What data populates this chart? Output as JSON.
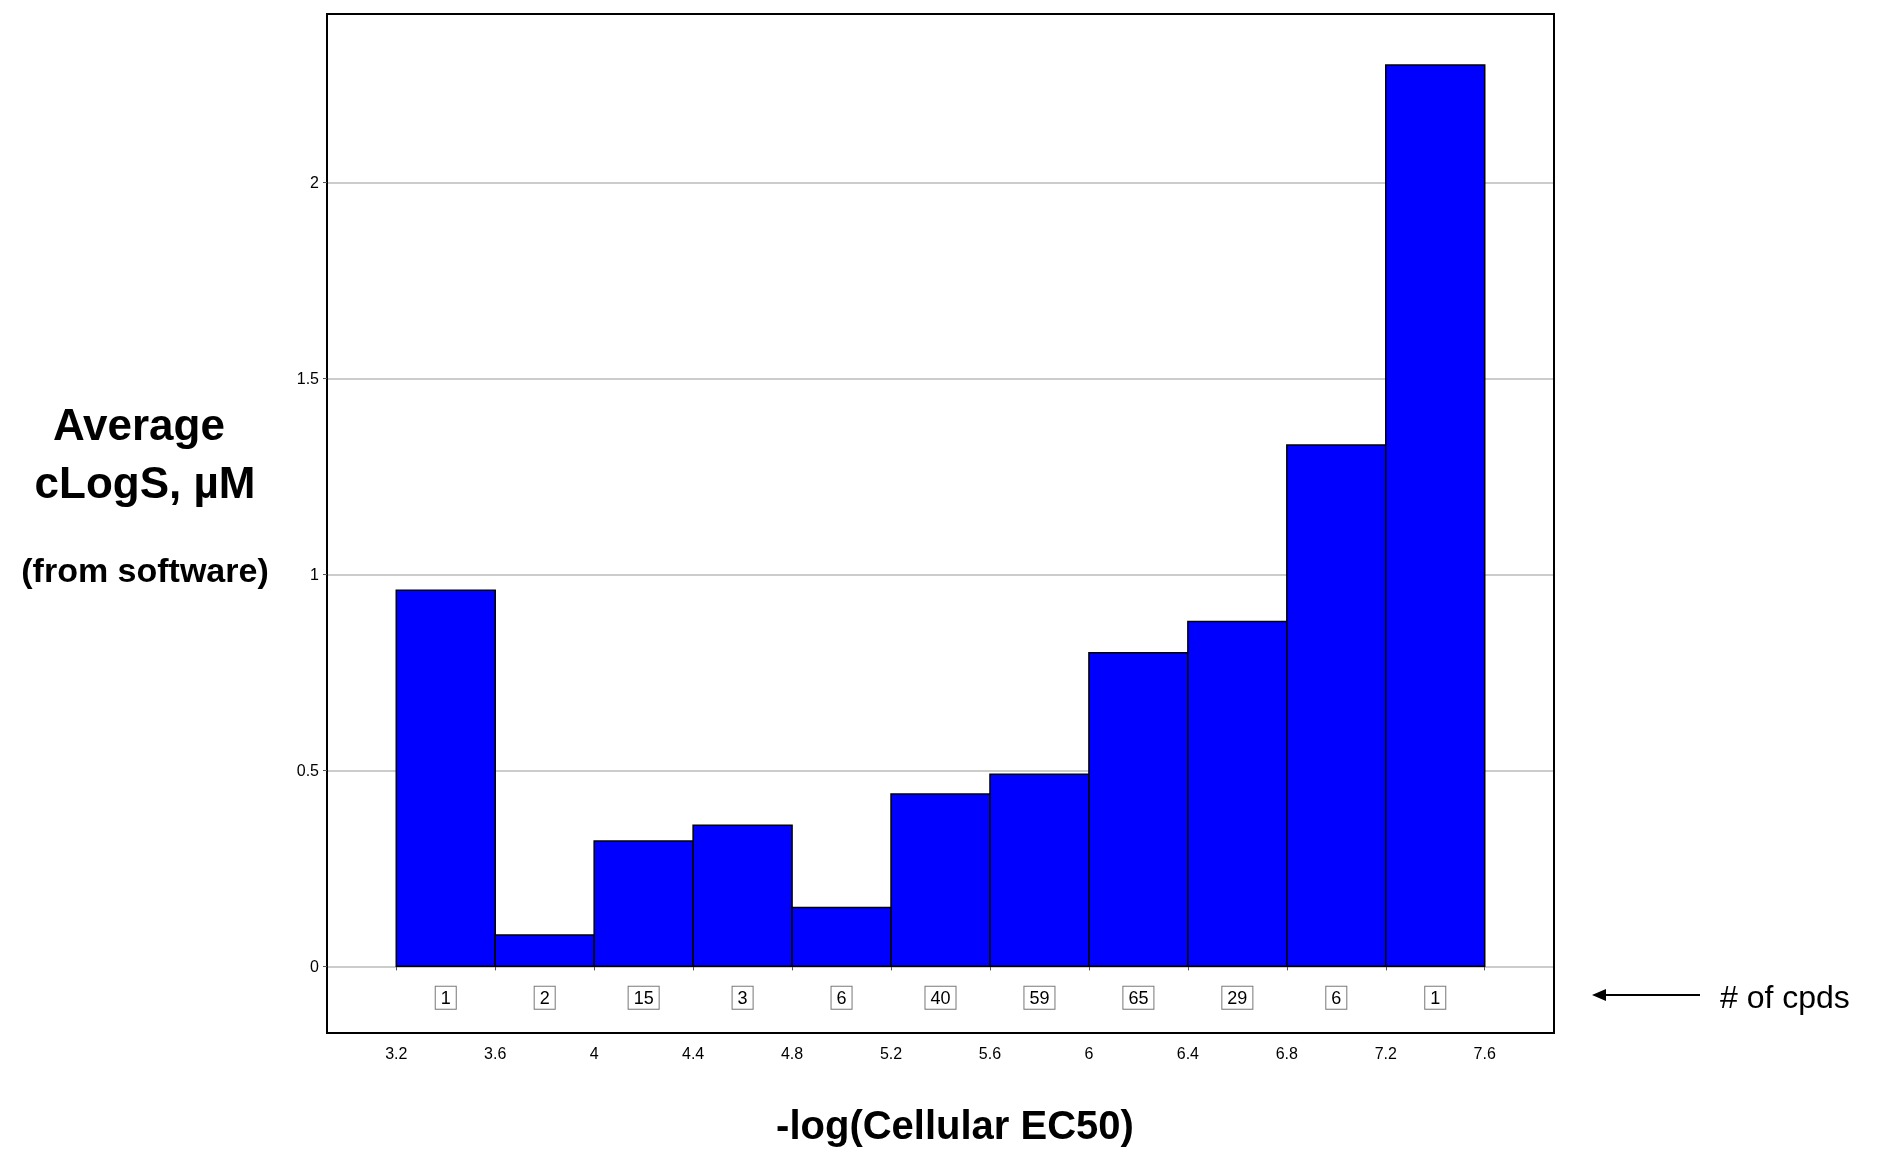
{
  "chart_data": {
    "type": "histogram",
    "xlabel": "-log(Cellular EC50)",
    "ylabel": "Average cLogS, µM",
    "bins": [
      3.2,
      3.6,
      4.0,
      4.4,
      4.8,
      5.2,
      5.6,
      6.0,
      6.4,
      6.8,
      7.2,
      7.6
    ],
    "values": [
      0.96,
      0.08,
      0.32,
      0.36,
      0.15,
      0.44,
      0.49,
      0.8,
      0.88,
      1.33,
      2.3
    ],
    "color": "#0000ff",
    "xlim": [
      2.92,
      7.88
    ],
    "xticks": [
      3.2,
      3.6,
      4,
      4.4,
      4.8,
      5.2,
      5.6,
      6,
      6.4,
      6.8,
      7.2,
      7.6
    ],
    "ylim": [
      -0.17,
      2.43
    ],
    "yticks": [
      0,
      0.5,
      1,
      1.5,
      2
    ],
    "grid": "y",
    "annotations": [
      "(from software)",
      {
        "text": "1",
        "x": 3.4,
        "y": -0.08
      },
      {
        "text": "2",
        "x": 3.8,
        "y": -0.08
      },
      {
        "text": "15",
        "x": 4.2,
        "y": -0.08
      },
      {
        "text": "3",
        "x": 4.6,
        "y": -0.08
      },
      {
        "text": "6",
        "x": 5.0,
        "y": -0.08
      },
      {
        "text": "40",
        "x": 5.4,
        "y": -0.08
      },
      {
        "text": "59",
        "x": 5.8,
        "y": -0.08
      },
      {
        "text": "65",
        "x": 6.2,
        "y": -0.08
      },
      {
        "text": "29",
        "x": 6.6,
        "y": -0.08
      },
      {
        "text": "6",
        "x": 7.0,
        "y": -0.08
      },
      {
        "text": "1",
        "x": 7.4,
        "y": -0.08
      },
      "# of cpds"
    ]
  }
}
